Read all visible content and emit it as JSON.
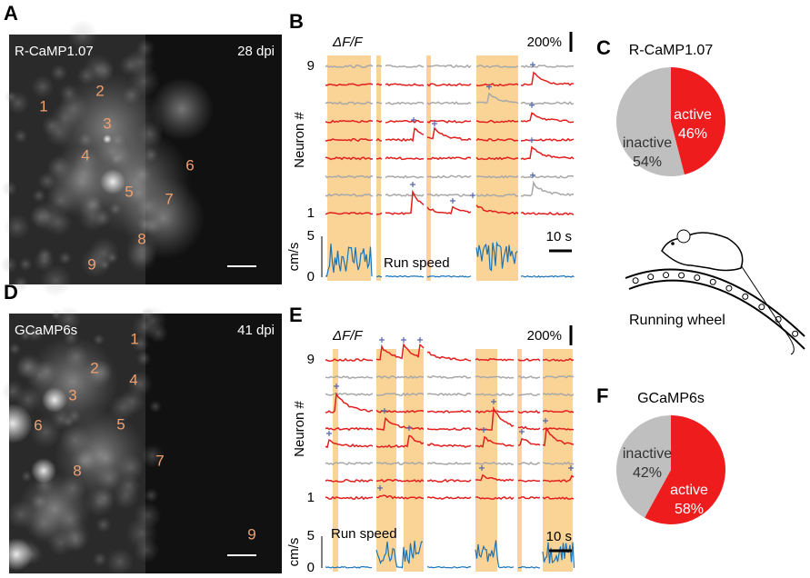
{
  "panel_a": {
    "letter": "A",
    "indicator": "R-CaMP1.07",
    "age": "28 dpi",
    "cells": [
      "1",
      "2",
      "3",
      "4",
      "5",
      "6",
      "7",
      "8",
      "9"
    ]
  },
  "panel_b": {
    "letter": "B",
    "signal": "ΔF/F",
    "scale": "200%",
    "top_neuron": "9",
    "bottom_neuron": "1",
    "y_label": "Neuron #",
    "speed_unit": "cm/s",
    "speed_ticks": [
      "5",
      "0"
    ],
    "speed_label": "Run speed",
    "time_scale": "10 s"
  },
  "panel_c": {
    "letter": "C",
    "title": "R-CaMP1.07",
    "categories": [
      "active",
      "inactive"
    ],
    "values": [
      46,
      54
    ],
    "value_labels": [
      "46%",
      "54%"
    ],
    "colors": [
      "#ee1c1c",
      "#bfbfbf"
    ]
  },
  "panel_d": {
    "letter": "D",
    "indicator": "GCaMP6s",
    "age": "41 dpi",
    "cells": [
      "1",
      "2",
      "3",
      "4",
      "5",
      "6",
      "7",
      "8",
      "9"
    ]
  },
  "panel_e": {
    "letter": "E",
    "signal": "ΔF/F",
    "scale": "200%",
    "top_neuron": "9",
    "bottom_neuron": "1",
    "y_label": "Neuron #",
    "speed_unit": "cm/s",
    "speed_ticks": [
      "5",
      "0"
    ],
    "speed_label": "Run speed",
    "time_scale": "10 s"
  },
  "panel_f": {
    "letter": "F",
    "title": "GCaMP6s",
    "categories": [
      "active",
      "inactive"
    ],
    "values": [
      58,
      42
    ],
    "value_labels": [
      "58%",
      "42%"
    ],
    "colors": [
      "#ee1c1c",
      "#bfbfbf"
    ]
  },
  "wheel_label": "Running wheel"
}
